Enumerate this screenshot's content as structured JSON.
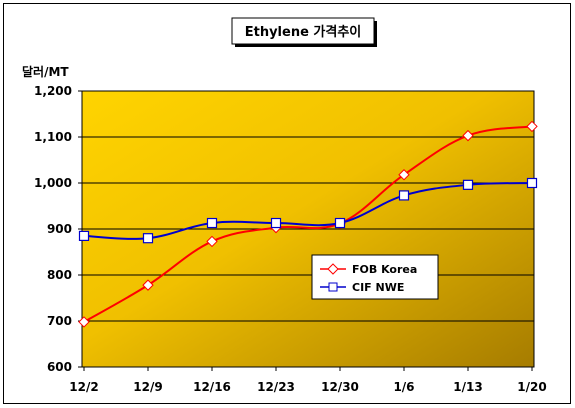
{
  "chart_data": {
    "type": "line",
    "title": "Ethylene 가격추이",
    "ylabel": "달러/MT",
    "xlabel": "",
    "categories": [
      "12/2",
      "12/9",
      "12/16",
      "12/23",
      "12/30",
      "1/6",
      "1/13",
      "1/20"
    ],
    "ylim": [
      600,
      1200
    ],
    "yticks": [
      600,
      700,
      800,
      900,
      "1,000",
      "1,100",
      "1,200"
    ],
    "ytick_values": [
      600,
      700,
      800,
      900,
      1000,
      1100,
      1200
    ],
    "grid": true,
    "legend_position": "center-right",
    "series": [
      {
        "name": "FOB Korea",
        "color": "#ff0000",
        "marker": "diamond",
        "values": [
          698,
          778,
          873,
          903,
          912,
          1018,
          1103,
          1123
        ]
      },
      {
        "name": "CIF NWE",
        "color": "#0000cc",
        "marker": "square",
        "values": [
          885,
          880,
          913,
          913,
          913,
          973,
          996,
          1000
        ]
      }
    ],
    "colors": {
      "plot_bg_light": "#ffd400",
      "plot_bg_dark": "#a67c00",
      "frame": "#000000"
    }
  }
}
